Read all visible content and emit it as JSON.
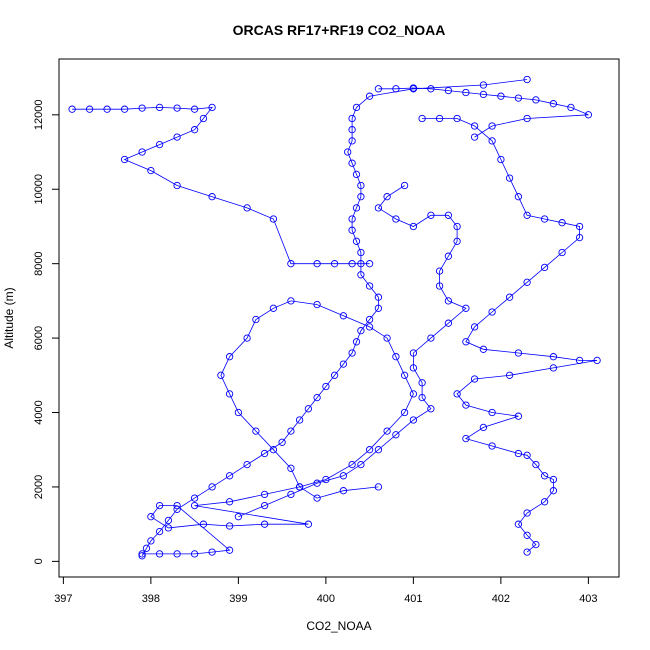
{
  "chart_data": {
    "type": "scatter",
    "title": "ORCAS RF17+RF19 CO2_NOAA",
    "xlabel": "CO2_NOAA",
    "ylabel": "Altitude (m)",
    "xlim": [
      396.95,
      403.35
    ],
    "ylim": [
      -420,
      13500
    ],
    "x_ticks": [
      397,
      398,
      399,
      400,
      401,
      402,
      403
    ],
    "y_ticks": [
      0,
      2000,
      4000,
      6000,
      8000,
      10000,
      12000
    ],
    "grid": false,
    "legend": "none",
    "marker": "open-circle",
    "series_color": "#0000ff",
    "series": [
      {
        "points": [
          [
            397.9,
            150
          ],
          [
            397.95,
            350
          ],
          [
            398.0,
            550
          ],
          [
            398.1,
            800
          ],
          [
            398.2,
            1100
          ],
          [
            398.3,
            1400
          ],
          [
            398.5,
            1700
          ],
          [
            398.7,
            2000
          ],
          [
            398.9,
            2300
          ],
          [
            399.1,
            2600
          ],
          [
            399.3,
            2900
          ],
          [
            399.5,
            3200
          ],
          [
            399.6,
            3500
          ],
          [
            399.7,
            3800
          ],
          [
            399.8,
            4100
          ],
          [
            399.9,
            4400
          ],
          [
            400.0,
            4700
          ],
          [
            400.1,
            5000
          ],
          [
            400.2,
            5300
          ],
          [
            400.3,
            5600
          ],
          [
            400.35,
            5900
          ],
          [
            400.4,
            6200
          ],
          [
            400.5,
            6500
          ],
          [
            400.6,
            6800
          ],
          [
            400.6,
            7100
          ],
          [
            400.5,
            7400
          ],
          [
            400.4,
            7700
          ],
          [
            400.4,
            8000
          ],
          [
            400.4,
            8300
          ],
          [
            400.35,
            8600
          ],
          [
            400.3,
            8900
          ],
          [
            400.3,
            9200
          ],
          [
            400.35,
            9500
          ],
          [
            400.4,
            9800
          ],
          [
            400.4,
            10100
          ],
          [
            400.35,
            10400
          ],
          [
            400.3,
            10700
          ],
          [
            400.25,
            11000
          ],
          [
            400.3,
            11300
          ],
          [
            400.3,
            11600
          ],
          [
            400.3,
            11900
          ],
          [
            400.35,
            12200
          ],
          [
            400.5,
            12500
          ],
          [
            401.0,
            12700
          ],
          [
            401.8,
            12800
          ],
          [
            402.3,
            12950
          ]
        ]
      },
      {
        "points": [
          [
            397.1,
            12150
          ],
          [
            397.3,
            12150
          ],
          [
            397.5,
            12150
          ],
          [
            397.7,
            12150
          ],
          [
            397.9,
            12180
          ],
          [
            398.1,
            12200
          ],
          [
            398.3,
            12180
          ],
          [
            398.5,
            12150
          ],
          [
            398.7,
            12200
          ],
          [
            398.6,
            11900
          ],
          [
            398.5,
            11600
          ],
          [
            398.3,
            11400
          ],
          [
            398.1,
            11200
          ],
          [
            397.9,
            11000
          ],
          [
            397.7,
            10800
          ],
          [
            398.0,
            10500
          ],
          [
            398.3,
            10100
          ],
          [
            398.7,
            9800
          ],
          [
            399.1,
            9500
          ],
          [
            399.4,
            9200
          ],
          [
            399.6,
            8000
          ],
          [
            399.9,
            8000
          ],
          [
            400.1,
            8000
          ],
          [
            400.3,
            8000
          ],
          [
            400.5,
            8000
          ]
        ]
      },
      {
        "points": [
          [
            401.1,
            11900
          ],
          [
            401.3,
            11900
          ],
          [
            401.5,
            11900
          ],
          [
            401.7,
            11700
          ],
          [
            401.9,
            11300
          ],
          [
            402.0,
            10800
          ],
          [
            402.1,
            10300
          ],
          [
            402.2,
            9800
          ],
          [
            402.3,
            9300
          ],
          [
            402.5,
            9200
          ],
          [
            402.7,
            9100
          ],
          [
            402.9,
            9000
          ],
          [
            402.9,
            8700
          ],
          [
            402.7,
            8300
          ],
          [
            402.5,
            7900
          ],
          [
            402.3,
            7500
          ],
          [
            402.1,
            7100
          ],
          [
            401.9,
            6700
          ],
          [
            401.7,
            6300
          ],
          [
            401.6,
            5900
          ],
          [
            401.8,
            5700
          ],
          [
            402.2,
            5600
          ],
          [
            402.6,
            5500
          ],
          [
            402.9,
            5400
          ],
          [
            403.1,
            5400
          ],
          [
            402.6,
            5200
          ],
          [
            402.1,
            5000
          ],
          [
            401.7,
            4900
          ],
          [
            401.5,
            4500
          ],
          [
            401.6,
            4200
          ],
          [
            401.9,
            4000
          ],
          [
            402.2,
            3900
          ],
          [
            401.8,
            3600
          ],
          [
            401.6,
            3300
          ],
          [
            401.9,
            3100
          ],
          [
            402.2,
            2900
          ],
          [
            402.3,
            2850
          ],
          [
            402.4,
            2600
          ],
          [
            402.5,
            2300
          ],
          [
            402.6,
            2200
          ],
          [
            402.6,
            1900
          ],
          [
            402.5,
            1600
          ],
          [
            402.3,
            1300
          ],
          [
            402.2,
            1000
          ],
          [
            402.3,
            700
          ],
          [
            402.4,
            450
          ],
          [
            402.3,
            250
          ]
        ]
      },
      {
        "points": [
          [
            397.9,
            200
          ],
          [
            398.1,
            200
          ],
          [
            398.3,
            200
          ],
          [
            398.5,
            200
          ],
          [
            398.7,
            250
          ],
          [
            398.9,
            300
          ],
          [
            398.3,
            1500
          ],
          [
            398.1,
            1500
          ],
          [
            398.0,
            1200
          ],
          [
            398.2,
            900
          ],
          [
            398.6,
            1000
          ],
          [
            398.9,
            950
          ],
          [
            399.3,
            1000
          ],
          [
            399.8,
            1000
          ],
          [
            398.5,
            1500
          ],
          [
            398.9,
            1600
          ],
          [
            399.3,
            1800
          ],
          [
            399.7,
            2000
          ],
          [
            400.0,
            2200
          ],
          [
            400.3,
            2600
          ],
          [
            400.5,
            3000
          ],
          [
            400.7,
            3500
          ],
          [
            400.9,
            4000
          ],
          [
            401.0,
            4500
          ],
          [
            400.9,
            5000
          ],
          [
            400.8,
            5500
          ],
          [
            400.7,
            6000
          ],
          [
            400.5,
            6300
          ],
          [
            400.2,
            6600
          ],
          [
            399.9,
            6900
          ],
          [
            399.6,
            7000
          ],
          [
            399.4,
            6800
          ],
          [
            399.2,
            6500
          ],
          [
            399.1,
            6000
          ],
          [
            398.9,
            5500
          ],
          [
            398.8,
            5000
          ],
          [
            398.9,
            4500
          ],
          [
            399.0,
            4000
          ],
          [
            399.2,
            3500
          ],
          [
            399.4,
            3000
          ],
          [
            399.6,
            2500
          ],
          [
            399.7,
            2000
          ],
          [
            399.9,
            1700
          ],
          [
            400.2,
            1900
          ],
          [
            400.6,
            2000
          ]
        ]
      },
      {
        "points": [
          [
            400.9,
            10100
          ],
          [
            400.7,
            9800
          ],
          [
            400.6,
            9500
          ],
          [
            400.8,
            9200
          ],
          [
            401.0,
            9000
          ],
          [
            401.2,
            9300
          ],
          [
            401.4,
            9300
          ],
          [
            401.5,
            9000
          ],
          [
            401.5,
            8600
          ],
          [
            401.4,
            8200
          ],
          [
            401.3,
            7800
          ],
          [
            401.3,
            7400
          ],
          [
            401.4,
            7000
          ],
          [
            401.6,
            6800
          ],
          [
            401.4,
            6400
          ],
          [
            401.2,
            6000
          ],
          [
            401.0,
            5600
          ],
          [
            401.0,
            5200
          ],
          [
            401.1,
            4800
          ],
          [
            401.1,
            4400
          ],
          [
            401.2,
            4100
          ],
          [
            401.0,
            3800
          ],
          [
            400.8,
            3400
          ],
          [
            400.6,
            3000
          ],
          [
            400.4,
            2600
          ],
          [
            400.2,
            2300
          ],
          [
            399.9,
            2100
          ],
          [
            399.6,
            1800
          ],
          [
            399.3,
            1500
          ],
          [
            399.0,
            1200
          ]
        ]
      },
      {
        "points": [
          [
            400.6,
            12700
          ],
          [
            400.8,
            12700
          ],
          [
            401.0,
            12720
          ],
          [
            401.2,
            12700
          ],
          [
            401.4,
            12650
          ],
          [
            401.6,
            12600
          ],
          [
            401.8,
            12550
          ],
          [
            402.0,
            12500
          ],
          [
            402.2,
            12450
          ],
          [
            402.4,
            12400
          ],
          [
            402.6,
            12300
          ],
          [
            402.8,
            12200
          ],
          [
            403.0,
            12000
          ],
          [
            402.3,
            11900
          ],
          [
            401.9,
            11700
          ],
          [
            401.7,
            11400
          ]
        ]
      }
    ]
  }
}
